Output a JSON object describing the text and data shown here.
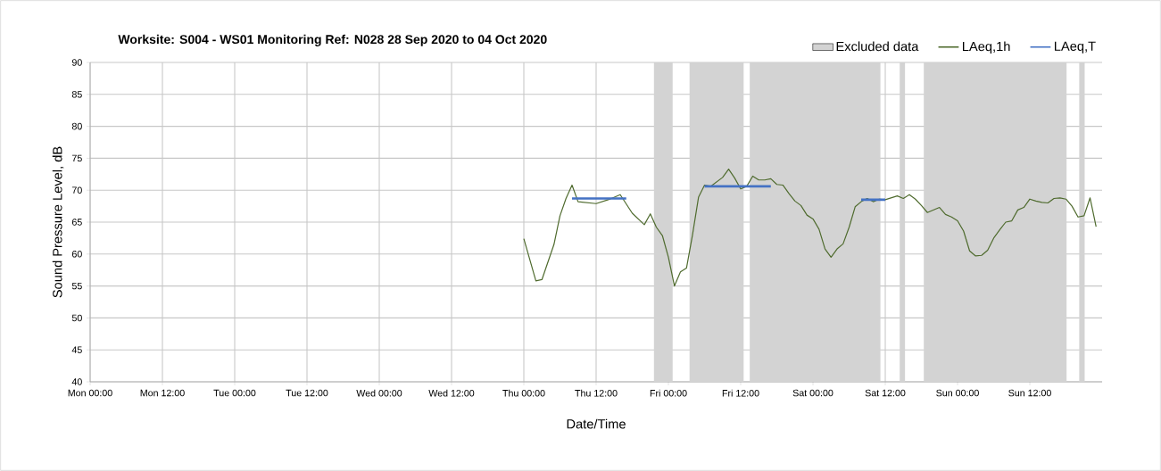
{
  "chart_data": {
    "type": "line",
    "title": "Worksite: S004 - WS01    Monitoring Ref: N028      28 Sep 2020 to 04 Oct 2020",
    "xlabel": "Date/Time",
    "ylabel": "Sound Pressure Level, dB",
    "xlim": [
      "2020-09-28T00:00",
      "2020-10-05T00:00"
    ],
    "ylim": [
      40,
      90
    ],
    "xticks": [
      {
        "value": "2020-09-28T00:00",
        "label": "Mon 00:00"
      },
      {
        "value": "2020-09-28T12:00",
        "label": "Mon 12:00"
      },
      {
        "value": "2020-09-29T00:00",
        "label": "Tue 00:00"
      },
      {
        "value": "2020-09-29T12:00",
        "label": "Tue 12:00"
      },
      {
        "value": "2020-09-30T00:00",
        "label": "Wed 00:00"
      },
      {
        "value": "2020-09-30T12:00",
        "label": "Wed 12:00"
      },
      {
        "value": "2020-10-01T00:00",
        "label": "Thu 00:00"
      },
      {
        "value": "2020-10-01T12:00",
        "label": "Thu 12:00"
      },
      {
        "value": "2020-10-02T00:00",
        "label": "Fri 00:00"
      },
      {
        "value": "2020-10-02T12:00",
        "label": "Fri 12:00"
      },
      {
        "value": "2020-10-03T00:00",
        "label": "Sat 00:00"
      },
      {
        "value": "2020-10-03T12:00",
        "label": "Sat 12:00"
      },
      {
        "value": "2020-10-04T00:00",
        "label": "Sun 00:00"
      },
      {
        "value": "2020-10-04T12:00",
        "label": "Sun 12:00"
      }
    ],
    "yticks": [
      40,
      45,
      50,
      55,
      60,
      65,
      70,
      75,
      80,
      85,
      90
    ],
    "grid": true,
    "legend": "top right",
    "bands": [
      {
        "axis": "x",
        "from": "2020-10-01T21:36",
        "to": "2020-10-02T00:42",
        "label": "Excluded data",
        "color": "#d3d3d3"
      },
      {
        "axis": "x",
        "from": "2020-10-02T03:30",
        "to": "2020-10-02T12:30",
        "color": "#d3d3d3"
      },
      {
        "axis": "x",
        "from": "2020-10-02T13:30",
        "to": "2020-10-03T11:12",
        "color": "#d3d3d3"
      },
      {
        "axis": "x",
        "from": "2020-10-03T14:24",
        "to": "2020-10-03T15:18",
        "color": "#d3d3d3"
      },
      {
        "axis": "x",
        "from": "2020-10-03T18:24",
        "to": "2020-10-04T18:06",
        "color": "#d3d3d3"
      },
      {
        "axis": "x",
        "from": "2020-10-04T20:12",
        "to": "2020-10-04T21:06",
        "color": "#d3d3d3"
      }
    ],
    "series": [
      {
        "name": "LAeq,1h",
        "color": "#4f6b2e",
        "x": [
          "2020-10-01T00:00",
          "2020-10-01T02:00",
          "2020-10-01T03:00",
          "2020-10-01T05:00",
          "2020-10-01T06:00",
          "2020-10-01T07:00",
          "2020-10-01T08:00",
          "2020-10-01T09:00",
          "2020-10-01T10:00",
          "2020-10-01T12:00",
          "2020-10-01T14:00",
          "2020-10-01T16:00",
          "2020-10-01T18:00",
          "2020-10-01T20:00",
          "2020-10-01T21:00",
          "2020-10-01T22:00",
          "2020-10-01T23:00",
          "2020-10-02T00:00",
          "2020-10-02T01:00",
          "2020-10-02T02:00",
          "2020-10-02T03:00",
          "2020-10-02T04:00",
          "2020-10-02T05:00",
          "2020-10-02T06:00",
          "2020-10-02T07:00",
          "2020-10-02T09:00",
          "2020-10-02T10:00",
          "2020-10-02T11:00",
          "2020-10-02T12:00",
          "2020-10-02T13:00",
          "2020-10-02T14:00",
          "2020-10-02T15:00",
          "2020-10-02T16:00",
          "2020-10-02T17:00",
          "2020-10-02T18:00",
          "2020-10-02T19:00",
          "2020-10-02T20:00",
          "2020-10-02T21:00",
          "2020-10-02T22:00",
          "2020-10-02T23:00",
          "2020-10-03T00:00",
          "2020-10-03T01:00",
          "2020-10-03T02:00",
          "2020-10-03T03:00",
          "2020-10-03T04:00",
          "2020-10-03T05:00",
          "2020-10-03T06:00",
          "2020-10-03T07:00",
          "2020-10-03T08:00",
          "2020-10-03T09:00",
          "2020-10-03T10:00",
          "2020-10-03T11:00",
          "2020-10-03T12:00",
          "2020-10-03T13:00",
          "2020-10-03T14:00",
          "2020-10-03T15:00",
          "2020-10-03T16:00",
          "2020-10-03T17:00",
          "2020-10-03T18:00",
          "2020-10-03T19:00",
          "2020-10-03T20:00",
          "2020-10-03T21:00",
          "2020-10-03T22:00",
          "2020-10-03T23:00",
          "2020-10-04T00:00",
          "2020-10-04T01:00",
          "2020-10-04T02:00",
          "2020-10-04T03:00",
          "2020-10-04T04:00",
          "2020-10-04T05:00",
          "2020-10-04T06:00",
          "2020-10-04T07:00",
          "2020-10-04T08:00",
          "2020-10-04T09:00",
          "2020-10-04T10:00",
          "2020-10-04T11:00",
          "2020-10-04T12:00",
          "2020-10-04T13:00",
          "2020-10-04T14:00",
          "2020-10-04T15:00",
          "2020-10-04T16:00",
          "2020-10-04T17:00",
          "2020-10-04T18:00",
          "2020-10-04T19:00",
          "2020-10-04T20:00",
          "2020-10-04T21:00",
          "2020-10-04T22:00",
          "2020-10-04T23:00"
        ],
        "values": [
          62.4,
          55.8,
          56,
          61.5,
          66,
          68.7,
          70.8,
          68.2,
          68.1,
          67.9,
          68.5,
          69.3,
          66.4,
          64.6,
          66.3,
          64.2,
          62.9,
          59.5,
          55,
          57.2,
          57.8,
          63,
          68.9,
          70.8,
          70.6,
          72,
          73.3,
          71.9,
          70.2,
          70.6,
          72.2,
          71.6,
          71.6,
          71.8,
          70.9,
          70.8,
          69.5,
          68.3,
          67.6,
          66.1,
          65.5,
          63.9,
          60.8,
          59.5,
          60.8,
          61.6,
          64.2,
          67.4,
          68.2,
          68.7,
          68.2,
          68.6,
          68.5,
          68.8,
          69.1,
          68.7,
          69.3,
          68.6,
          67.6,
          66.5,
          66.9,
          67.3,
          66.2,
          65.8,
          65.2,
          63.6,
          60.5,
          59.7,
          59.8,
          60.6,
          62.5,
          63.8,
          65,
          65.2,
          66.9,
          67.3,
          68.6,
          68.3,
          68.1,
          68,
          68.7,
          68.8,
          68.6,
          67.5,
          65.8,
          66,
          68.8,
          64.3
        ]
      },
      {
        "name": "LAeq,T",
        "color": "#4472c4",
        "x": [
          "2020-10-01T08:00",
          "2020-10-01T17:00",
          "2020-10-01T23:00",
          "2020-10-02T06:00",
          "2020-10-02T17:00",
          "2020-10-03T00:00",
          "2020-10-03T08:00",
          "2020-10-03T12:00"
        ],
        "values": [
          68.7,
          68.7,
          null,
          70.6,
          70.6,
          null,
          68.5,
          68.5
        ]
      }
    ]
  }
}
